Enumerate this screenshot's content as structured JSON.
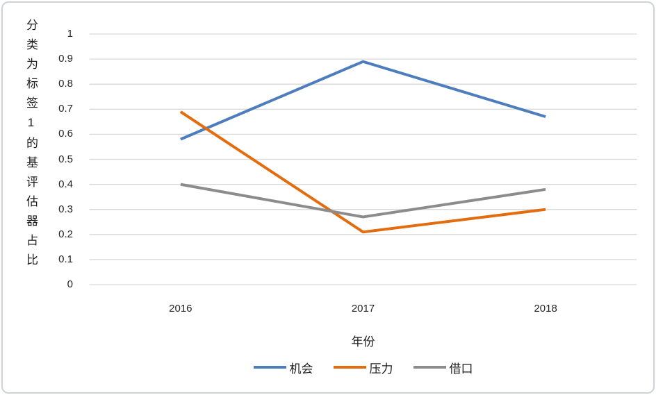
{
  "chart_data": {
    "type": "line",
    "categories": [
      "2016",
      "2017",
      "2018"
    ],
    "series": [
      {
        "name": "机会",
        "color": "#4E7DBE",
        "values": [
          0.58,
          0.89,
          0.67
        ]
      },
      {
        "name": "压力",
        "color": "#E36C0E",
        "values": [
          0.69,
          0.21,
          0.3
        ]
      },
      {
        "name": "借口",
        "color": "#8C8C8C",
        "values": [
          0.4,
          0.27,
          0.38
        ]
      }
    ],
    "title": "",
    "xlabel": "年份",
    "ylabel": "分类为标签1的基评估器占比",
    "ylim": [
      0,
      1
    ],
    "ytick_step": 0.1,
    "ytick_labels": [
      "0",
      "0.1",
      "0.2",
      "0.3",
      "0.4",
      "0.5",
      "0.6",
      "0.7",
      "0.8",
      "0.9",
      "1"
    ],
    "grid": "horizontal",
    "grid_color": "#D9D9D9",
    "legend_position": "bottom"
  }
}
